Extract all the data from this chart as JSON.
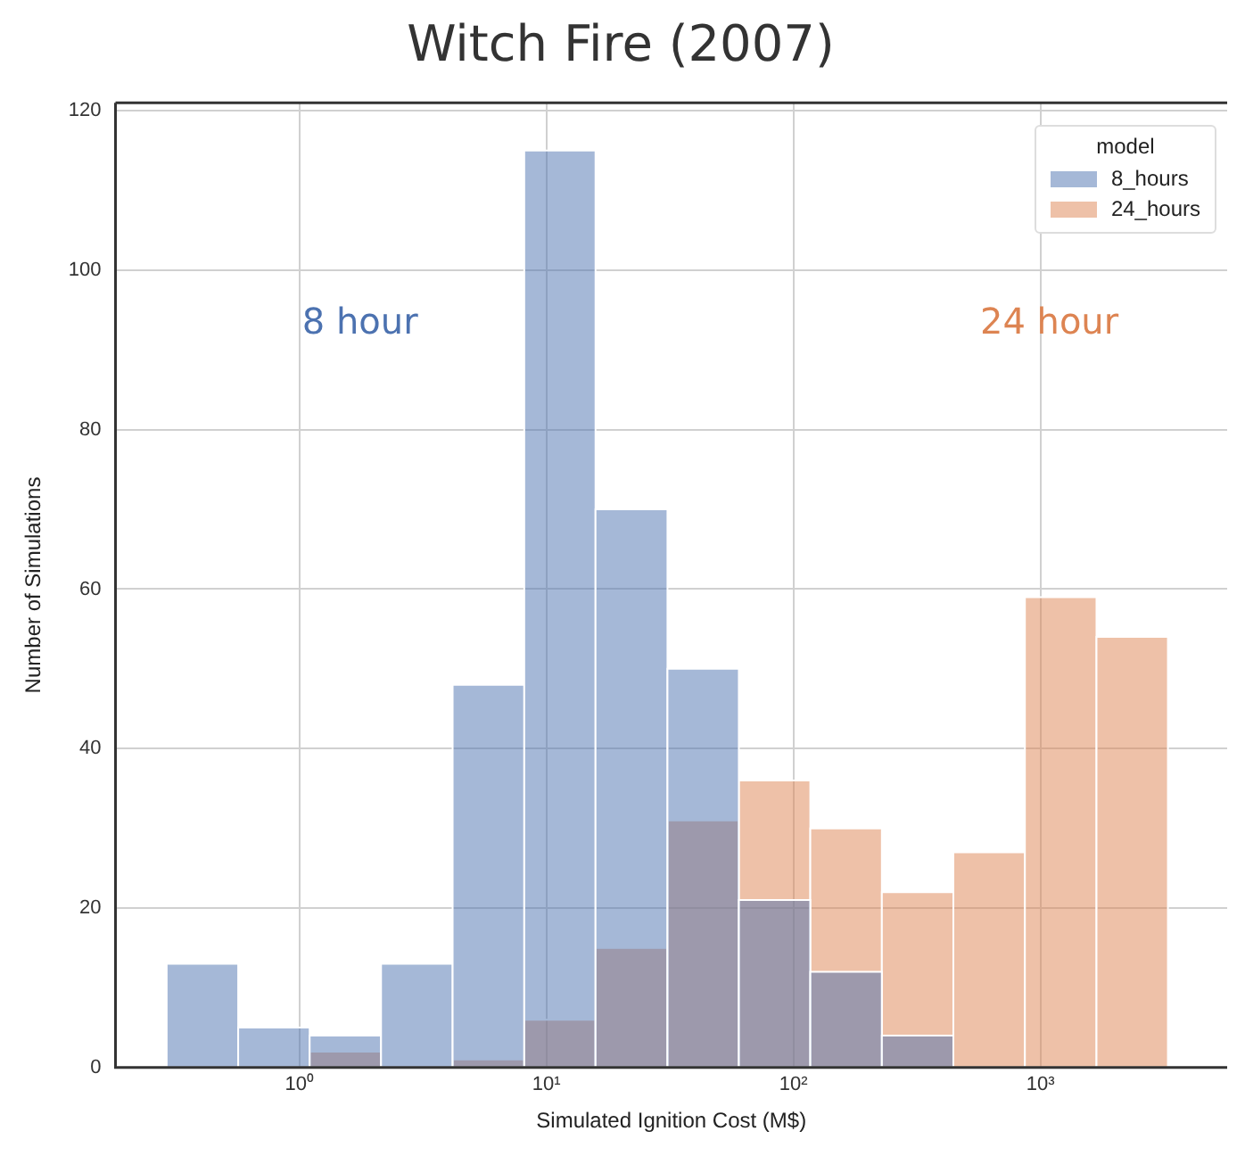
{
  "chart_data": {
    "type": "histogram",
    "title": "Witch Fire (2007)",
    "xlabel": "Simulated Ignition Cost (M$)",
    "ylabel": "Number of Simulations",
    "legend_title": "model",
    "bins": [
      0.29,
      0.565,
      1.1,
      2.14,
      4.17,
      8.13,
      15.8,
      30.9,
      60.1,
      117,
      228,
      444,
      865,
      1686,
      3281
    ],
    "series": [
      {
        "name": "8_hours",
        "color": "#4c72b0",
        "values": [
          13,
          5,
          4,
          13,
          48,
          115,
          70,
          50,
          21,
          12,
          4,
          0,
          0,
          0
        ]
      },
      {
        "name": "24_hours",
        "color": "#dd8452",
        "values": [
          0,
          0,
          2,
          0,
          1,
          6,
          15,
          31,
          36,
          30,
          22,
          27,
          59,
          54
        ]
      }
    ],
    "log": "x",
    "xlim": [
      0.18,
      5700
    ],
    "xticks": [
      {
        "value": 1,
        "label": "10⁰"
      },
      {
        "value": 10,
        "label": "10¹"
      },
      {
        "value": 100,
        "label": "10²"
      },
      {
        "value": 1000,
        "label": "10³"
      }
    ],
    "ylim": [
      0,
      121
    ],
    "yticks": [
      0,
      20,
      40,
      60,
      80,
      100,
      120
    ],
    "grid": true,
    "legend": "top right",
    "annotations": [
      "8 hour",
      "24 hour"
    ]
  }
}
